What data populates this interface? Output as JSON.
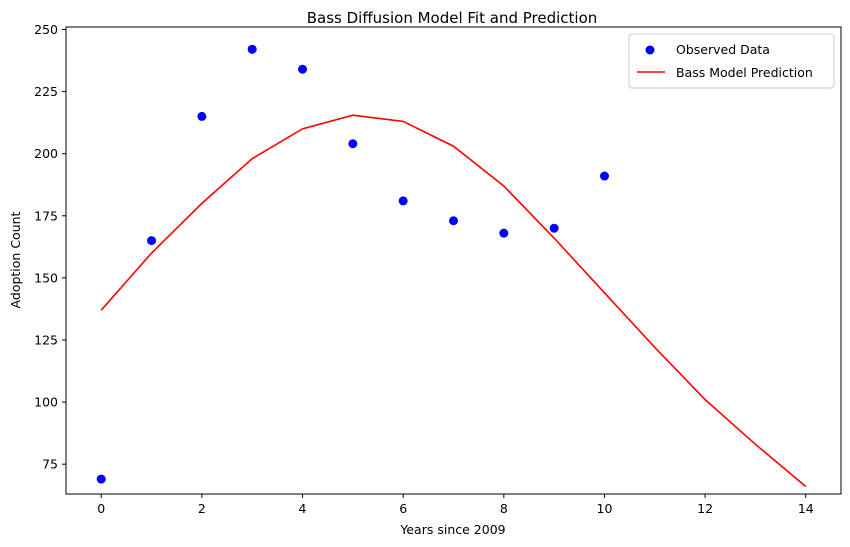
{
  "chart_data": {
    "type": "scatter+line",
    "title": "Bass Diffusion Model Fit and Prediction",
    "xlabel": "Years since 2009",
    "ylabel": "Adoption Count",
    "xlim": [
      -0.7,
      14.7
    ],
    "ylim": [
      63,
      251
    ],
    "xticks": [
      0,
      2,
      4,
      6,
      8,
      10,
      12,
      14
    ],
    "yticks": [
      75,
      100,
      125,
      150,
      175,
      200,
      225,
      250
    ],
    "grid": false,
    "legend_position": "top-right",
    "series": [
      {
        "name": "Observed Data",
        "kind": "scatter",
        "color": "#0000ff",
        "x": [
          0,
          1,
          2,
          3,
          4,
          5,
          6,
          7,
          8,
          9,
          10
        ],
        "y": [
          69,
          165,
          215,
          242,
          234,
          204,
          181,
          173,
          168,
          170,
          191
        ]
      },
      {
        "name": "Bass Model Prediction",
        "kind": "line",
        "color": "#ff0000",
        "x": [
          0,
          1,
          2,
          3,
          4,
          5,
          6,
          7,
          8,
          9,
          10,
          11,
          12,
          13,
          14
        ],
        "y": [
          137,
          160,
          180,
          198,
          210,
          215.5,
          213,
          203,
          187,
          166,
          144,
          122,
          101,
          83,
          66
        ]
      }
    ]
  }
}
